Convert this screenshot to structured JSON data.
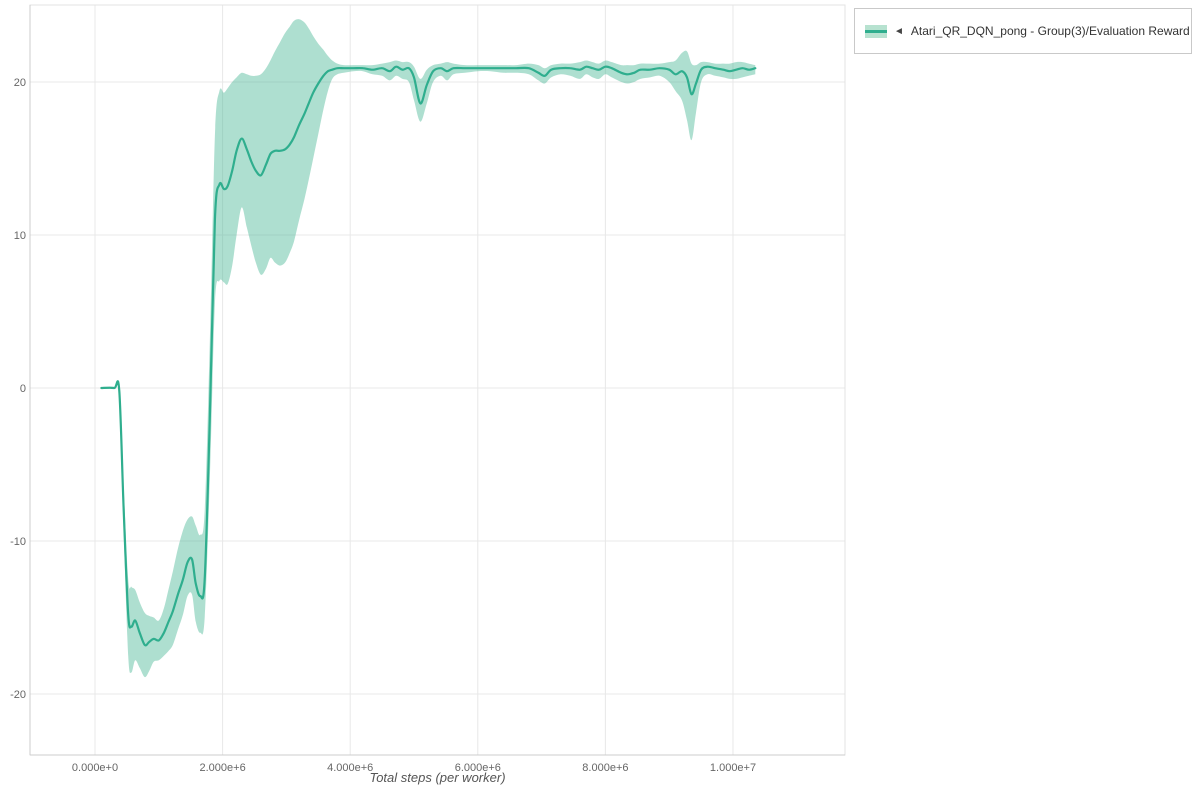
{
  "legend": {
    "toggle_icon": "◄",
    "label": "Atari_QR_DQN_pong - Group(3)/Evaluation Reward"
  },
  "colors": {
    "line": "#2fae8e",
    "band": "#3db28e",
    "grid": "#e8e8e8",
    "axis": "#cccccc"
  },
  "chart_data": {
    "type": "line",
    "title": "",
    "xlabel": "Total steps (per worker)",
    "ylabel": "",
    "grid": true,
    "legend_position": "top-right",
    "xlim": [
      -1019000,
      11756000
    ],
    "ylim": [
      -23.99,
      25.03
    ],
    "x_ticks": [
      0,
      2000000,
      4000000,
      6000000,
      8000000,
      10000000
    ],
    "x_tick_labels": [
      "0.000e+0",
      "2.000e+6",
      "4.000e+6",
      "6.000e+6",
      "8.000e+6",
      "1.000e+7"
    ],
    "y_ticks": [
      -20,
      -10,
      0,
      10,
      20
    ],
    "y_tick_labels": [
      "-20",
      "-10",
      "0",
      "10",
      "20"
    ],
    "series": [
      {
        "name": "Atari_QR_DQN_pong - Group(3)/Evaluation Reward",
        "color": "#2fae8e",
        "band_color": "#3db28e",
        "band_opacity": 0.42,
        "x_e6": [
          0.1,
          0.3,
          0.38,
          0.45,
          0.52,
          0.57,
          0.63,
          0.7,
          0.78,
          0.85,
          0.92,
          1.0,
          1.08,
          1.15,
          1.22,
          1.3,
          1.38,
          1.45,
          1.52,
          1.58,
          1.65,
          1.72,
          1.8,
          1.88,
          1.95,
          2.02,
          2.08,
          2.15,
          2.22,
          2.3,
          2.38,
          2.45,
          2.52,
          2.6,
          2.68,
          2.75,
          2.82,
          2.9,
          2.98,
          3.05,
          3.12,
          3.2,
          3.28,
          3.35,
          3.42,
          3.5,
          3.58,
          3.65,
          3.72,
          3.8,
          3.9,
          4.05,
          4.2,
          4.35,
          4.5,
          4.62,
          4.72,
          4.82,
          4.92,
          5.0,
          5.1,
          5.2,
          5.3,
          5.42,
          5.52,
          5.62,
          5.8,
          6.0,
          6.2,
          6.4,
          6.6,
          6.8,
          6.95,
          7.05,
          7.15,
          7.3,
          7.45,
          7.6,
          7.7,
          7.8,
          7.9,
          8.0,
          8.1,
          8.25,
          8.35,
          8.45,
          8.55,
          8.7,
          8.85,
          9.0,
          9.1,
          9.2,
          9.28,
          9.35,
          9.42,
          9.5,
          9.6,
          9.72,
          9.85,
          9.95,
          10.05,
          10.15,
          10.25,
          10.35
        ],
        "mean": [
          0.0,
          0.0,
          -0.2,
          -8.0,
          -14.8,
          -15.6,
          -15.2,
          -16.0,
          -16.8,
          -16.6,
          -16.4,
          -16.5,
          -16.0,
          -15.3,
          -14.6,
          -13.5,
          -12.5,
          -11.4,
          -11.2,
          -12.8,
          -13.6,
          -12.5,
          -2.0,
          11.0,
          13.3,
          13.0,
          13.2,
          14.2,
          15.5,
          16.3,
          15.6,
          14.8,
          14.2,
          13.9,
          14.6,
          15.3,
          15.5,
          15.5,
          15.6,
          15.9,
          16.4,
          17.2,
          17.9,
          18.6,
          19.3,
          19.9,
          20.4,
          20.7,
          20.8,
          20.9,
          20.9,
          20.9,
          20.9,
          20.8,
          20.9,
          20.7,
          21.0,
          20.8,
          20.9,
          20.3,
          18.6,
          19.8,
          20.7,
          20.9,
          20.7,
          20.9,
          20.9,
          20.9,
          20.9,
          20.9,
          20.9,
          20.9,
          20.6,
          20.4,
          20.8,
          20.9,
          20.9,
          20.8,
          21.0,
          20.9,
          20.8,
          21.0,
          20.9,
          20.6,
          20.5,
          20.6,
          20.8,
          20.8,
          20.9,
          20.8,
          20.5,
          20.7,
          20.3,
          19.2,
          19.9,
          20.8,
          21.0,
          20.9,
          20.8,
          20.7,
          20.8,
          20.9,
          20.8,
          20.9
        ],
        "lower": [
          0.0,
          0.0,
          -0.5,
          -9.5,
          -17.5,
          -18.6,
          -17.8,
          -18.3,
          -18.9,
          -18.5,
          -17.9,
          -17.8,
          -17.5,
          -17.2,
          -16.8,
          -15.8,
          -14.8,
          -13.6,
          -13.5,
          -15.3,
          -16.0,
          -15.0,
          -6.0,
          5.5,
          7.0,
          6.9,
          6.8,
          8.0,
          10.0,
          11.8,
          10.5,
          9.3,
          8.2,
          7.4,
          7.8,
          8.5,
          8.2,
          8.0,
          8.2,
          8.8,
          9.6,
          11.0,
          12.3,
          13.6,
          15.0,
          16.6,
          18.2,
          19.4,
          20.2,
          20.5,
          20.6,
          20.7,
          20.7,
          20.5,
          20.4,
          20.1,
          20.4,
          20.2,
          20.0,
          18.8,
          17.4,
          18.6,
          20.0,
          20.4,
          20.1,
          20.5,
          20.6,
          20.7,
          20.7,
          20.6,
          20.6,
          20.5,
          20.1,
          19.9,
          20.3,
          20.5,
          20.4,
          20.2,
          20.5,
          20.3,
          20.2,
          20.5,
          20.3,
          20.0,
          19.9,
          20.0,
          20.2,
          20.3,
          20.4,
          20.0,
          19.4,
          18.8,
          17.5,
          16.2,
          18.0,
          20.0,
          20.5,
          20.4,
          20.3,
          20.2,
          20.2,
          20.3,
          20.4,
          20.5
        ],
        "upper": [
          0.0,
          0.0,
          0.0,
          -6.5,
          -12.5,
          -13.0,
          -13.2,
          -14.0,
          -14.7,
          -14.9,
          -15.0,
          -15.2,
          -14.4,
          -13.2,
          -12.0,
          -10.5,
          -9.3,
          -8.6,
          -8.4,
          -9.0,
          -9.6,
          -8.0,
          3.0,
          16.5,
          19.4,
          19.3,
          19.6,
          20.0,
          20.3,
          20.6,
          20.5,
          20.4,
          20.4,
          20.5,
          20.9,
          21.4,
          22.0,
          22.6,
          23.2,
          23.6,
          24.0,
          24.1,
          23.9,
          23.5,
          23.0,
          22.5,
          22.1,
          21.7,
          21.4,
          21.2,
          21.1,
          21.1,
          21.1,
          21.1,
          21.2,
          21.3,
          21.4,
          21.3,
          21.3,
          21.0,
          20.2,
          20.8,
          21.1,
          21.2,
          21.3,
          21.2,
          21.1,
          21.1,
          21.1,
          21.1,
          21.1,
          21.2,
          21.1,
          20.9,
          21.1,
          21.2,
          21.2,
          21.3,
          21.4,
          21.3,
          21.2,
          21.4,
          21.3,
          21.1,
          21.1,
          21.1,
          21.2,
          21.2,
          21.2,
          21.3,
          21.4,
          21.9,
          22.0,
          21.2,
          21.1,
          21.3,
          21.3,
          21.2,
          21.2,
          21.2,
          21.3,
          21.3,
          21.2,
          21.1
        ]
      }
    ]
  }
}
